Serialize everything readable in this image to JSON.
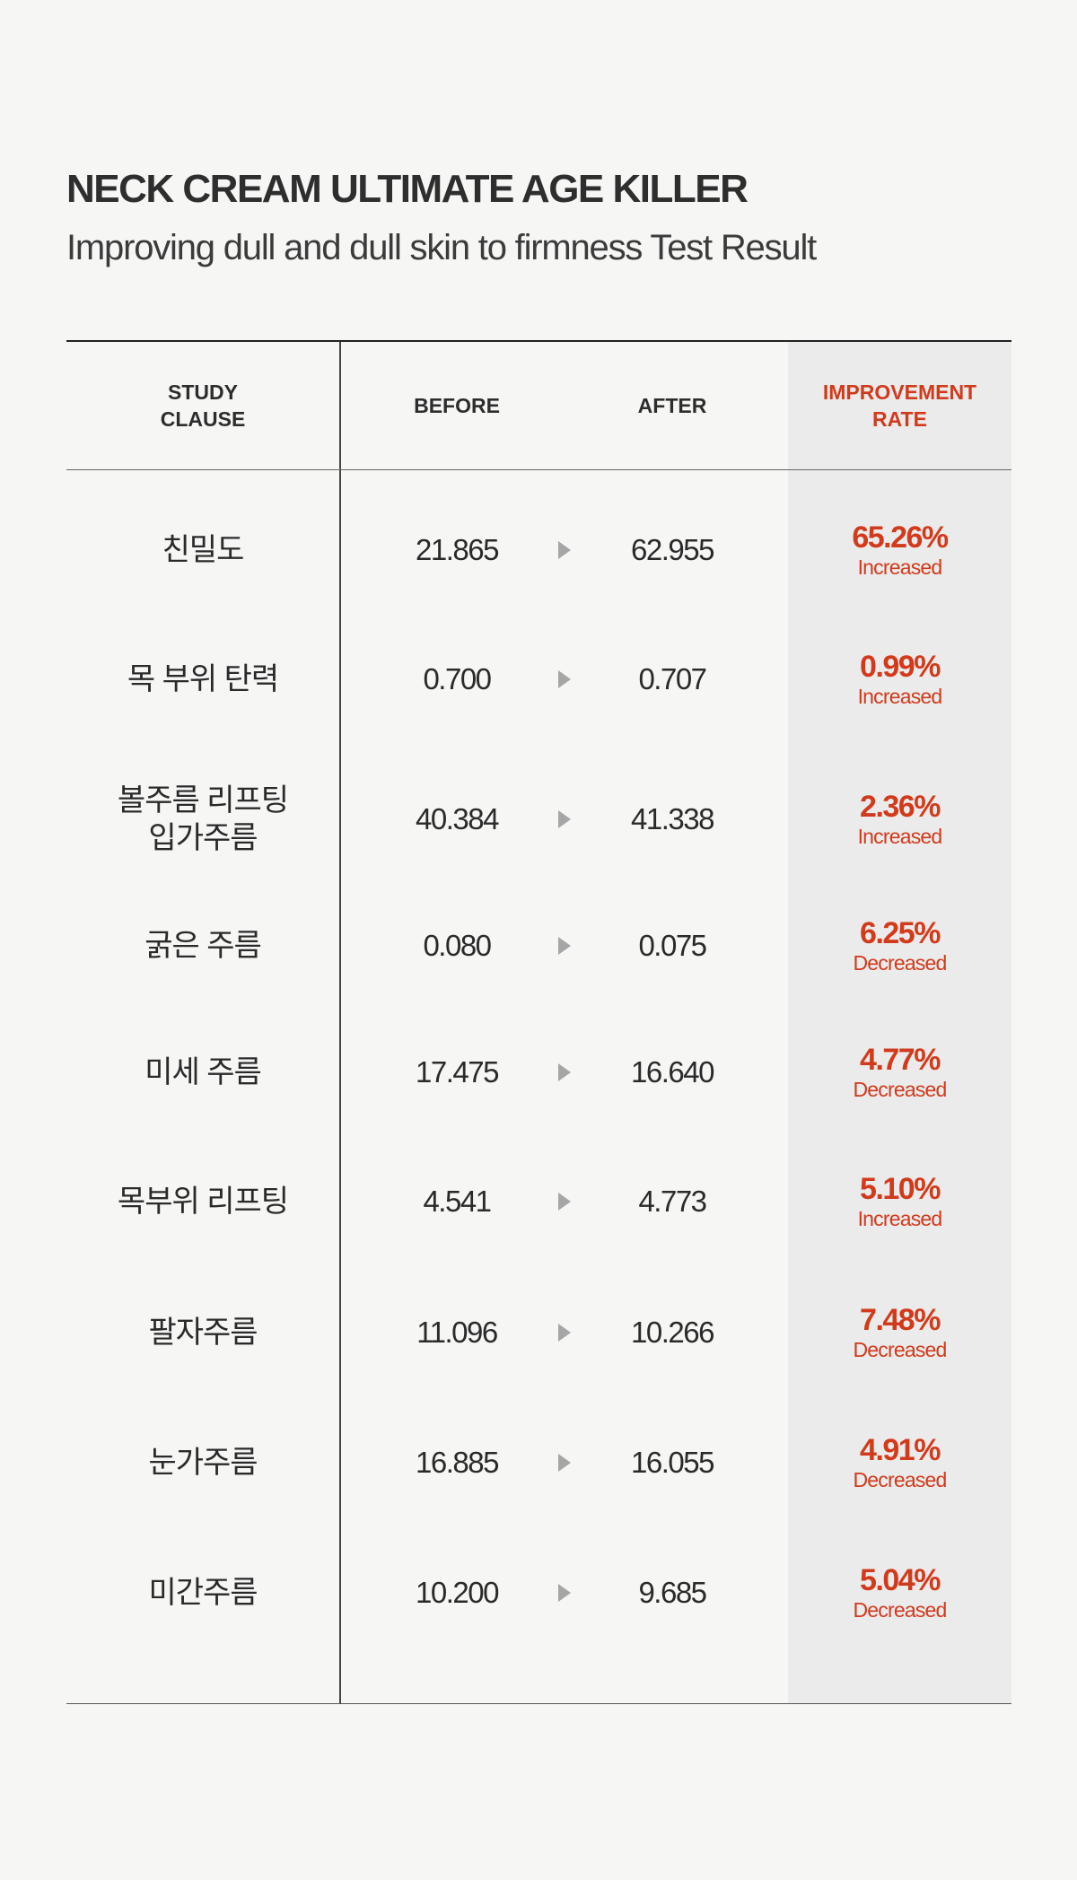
{
  "header": {
    "title": "NECK CREAM ULTIMATE AGE KILLER",
    "subtitle": "Improving dull and dull skin to firmness Test Result"
  },
  "table": {
    "columns": {
      "study_line1": "STUDY",
      "study_line2": "CLAUSE",
      "before": "BEFORE",
      "after": "AFTER",
      "rate_line1": "IMPROVEMENT",
      "rate_line2": "RATE"
    },
    "rows": [
      {
        "label1": "친밀도",
        "label2": "",
        "before": "21.865",
        "after": "62.955",
        "rate": "65.26%",
        "trend": "Increased"
      },
      {
        "label1": "목 부위 탄력",
        "label2": "",
        "before": "0.700",
        "after": "0.707",
        "rate": "0.99%",
        "trend": "Increased"
      },
      {
        "label1": "볼주름 리프팅",
        "label2": "입가주름",
        "before": "40.384",
        "after": "41.338",
        "rate": "2.36%",
        "trend": "Increased"
      },
      {
        "label1": "굵은 주름",
        "label2": "",
        "before": "0.080",
        "after": "0.075",
        "rate": "6.25%",
        "trend": "Decreased"
      },
      {
        "label1": "미세 주름",
        "label2": "",
        "before": "17.475",
        "after": "16.640",
        "rate": "4.77%",
        "trend": "Decreased"
      },
      {
        "label1": "목부위 리프팅",
        "label2": "",
        "before": "4.541",
        "after": "4.773",
        "rate": "5.10%",
        "trend": "Increased"
      },
      {
        "label1": "팔자주름",
        "label2": "",
        "before": "11.096",
        "after": "10.266",
        "rate": "7.48%",
        "trend": "Decreased"
      },
      {
        "label1": "눈가주름",
        "label2": "",
        "before": "16.885",
        "after": "16.055",
        "rate": "4.91%",
        "trend": "Decreased"
      },
      {
        "label1": "미간주름",
        "label2": "",
        "before": "10.200",
        "after": "9.685",
        "rate": "5.04%",
        "trend": "Decreased"
      }
    ]
  },
  "colors": {
    "accent": "#d23a1c",
    "rate_column_bg": "#ebebeb",
    "arrow": "#a6a6a6"
  },
  "icons": {
    "arrow": "triangle-right-icon"
  }
}
